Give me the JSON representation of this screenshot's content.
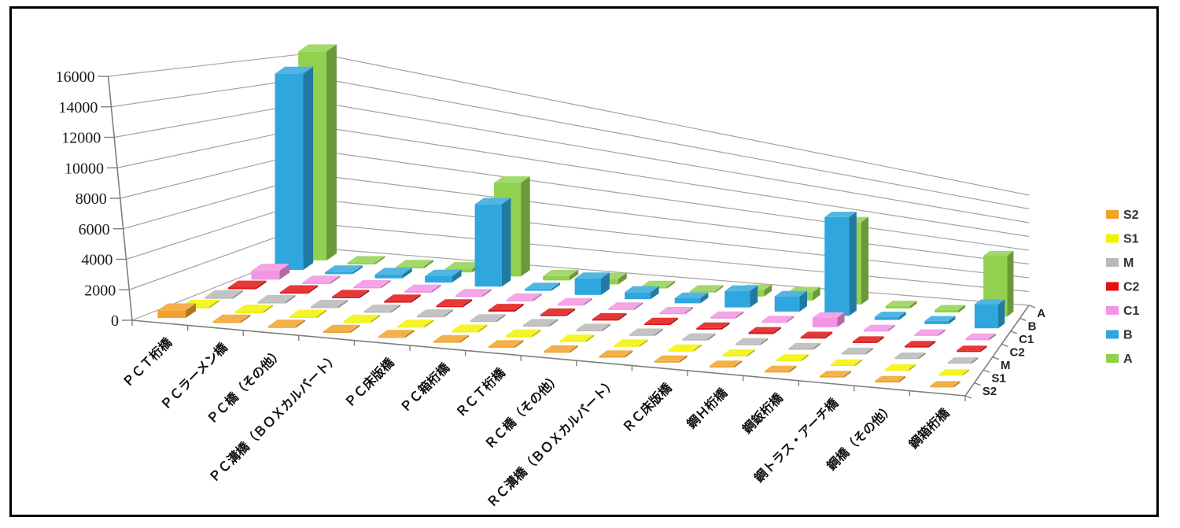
{
  "chart_data": {
    "type": "bar",
    "variant": "3d-column",
    "title": "",
    "xlabel": "",
    "ylabel": "",
    "categories": [
      "ＰＣＴ桁橋",
      "ＰＣラーメン橋",
      "ＰＣ橋（その他）",
      "ＰＣ溝橋（ＢＯＸカルバート）",
      "ＰＣ床版橋",
      "ＰＣ箱桁橋",
      "ＲＣＴ桁橋",
      "ＲＣ橋（その他）",
      "ＲＣ溝橋（ＢＯＸカルバート）",
      "ＲＣ床版橋",
      "鋼Ｈ桁橋",
      "鋼鈑桁橋",
      "鋼トラス・アーチ橋",
      "鋼橋（その他）",
      "鋼箱桁橋"
    ],
    "series_front_to_back": [
      {
        "name": "S2",
        "color": "#F0A22A",
        "values": [
          600,
          0,
          0,
          0,
          0,
          0,
          0,
          0,
          0,
          0,
          0,
          0,
          0,
          0,
          0
        ]
      },
      {
        "name": "S1",
        "color": "#F2F200",
        "values": [
          0,
          0,
          0,
          0,
          0,
          0,
          0,
          0,
          0,
          0,
          0,
          0,
          0,
          0,
          0
        ]
      },
      {
        "name": "M",
        "color": "#B8B8B8",
        "values": [
          0,
          0,
          0,
          0,
          0,
          0,
          0,
          0,
          0,
          0,
          0,
          0,
          0,
          0,
          0
        ]
      },
      {
        "name": "C2",
        "color": "#E01212",
        "values": [
          0,
          0,
          0,
          0,
          0,
          0,
          0,
          0,
          0,
          0,
          0,
          0,
          0,
          0,
          0
        ]
      },
      {
        "name": "C1",
        "color": "#F293E3",
        "values": [
          700,
          0,
          0,
          0,
          0,
          0,
          0,
          0,
          0,
          0,
          0,
          750,
          0,
          0,
          150
        ]
      },
      {
        "name": "B",
        "color": "#2FA7DE",
        "values": [
          15500,
          150,
          300,
          500,
          6500,
          150,
          1300,
          550,
          400,
          1300,
          1200,
          7800,
          250,
          250,
          1900
        ]
      },
      {
        "name": "A",
        "color": "#92D050",
        "values": [
          16500,
          100,
          150,
          300,
          7400,
          350,
          450,
          150,
          100,
          500,
          650,
          6500,
          200,
          200,
          4800
        ]
      }
    ],
    "legend_top_to_bottom": [
      "S2",
      "S1",
      "M",
      "C2",
      "C1",
      "B",
      "A"
    ],
    "depth_axis_labels_front_to_back": [
      "S2",
      "S1",
      "M",
      "C2",
      "C1",
      "B",
      "A"
    ],
    "ylim": [
      0,
      16000
    ],
    "yticks": [
      0,
      2000,
      4000,
      6000,
      8000,
      10000,
      12000,
      14000,
      16000
    ],
    "grid": true,
    "legend_position": "right"
  },
  "frame": {
    "border_color": "#000000",
    "background": "#FFFFFF"
  },
  "style_colors": {
    "gridline": "#A3A3A3",
    "axis": "#7F7F7F"
  }
}
